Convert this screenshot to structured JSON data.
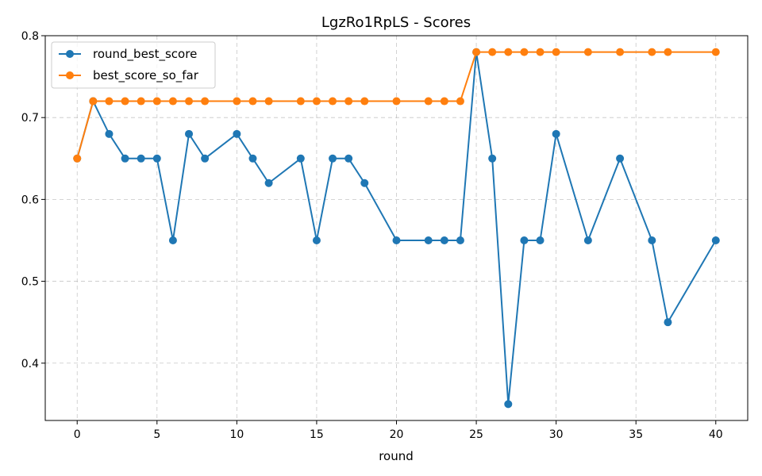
{
  "chart_data": {
    "type": "line",
    "title": "LgzRo1RpLS - Scores",
    "xlabel": "round",
    "ylabel": "",
    "xlim": [
      -2,
      42
    ],
    "ylim": [
      0.33,
      0.8
    ],
    "xticks": [
      0,
      5,
      10,
      15,
      20,
      25,
      30,
      35,
      40
    ],
    "yticks": [
      0.4,
      0.5,
      0.6,
      0.7,
      0.8
    ],
    "grid": true,
    "legend_position": "top-left",
    "x": [
      0,
      1,
      2,
      3,
      4,
      5,
      6,
      7,
      8,
      10,
      11,
      12,
      14,
      15,
      16,
      17,
      18,
      20,
      22,
      23,
      24,
      25,
      26,
      27,
      28,
      29,
      30,
      32,
      34,
      36,
      37,
      40
    ],
    "series": [
      {
        "name": "round_best_score",
        "color": "#1f77b4",
        "values": [
          0.65,
          0.72,
          0.68,
          0.65,
          0.65,
          0.65,
          0.55,
          0.68,
          0.65,
          0.68,
          0.65,
          0.62,
          0.65,
          0.55,
          0.65,
          0.65,
          0.62,
          0.55,
          0.55,
          0.55,
          0.55,
          0.78,
          0.65,
          0.35,
          0.55,
          0.55,
          0.68,
          0.55,
          0.65,
          0.55,
          0.45,
          0.55
        ]
      },
      {
        "name": "best_score_so_far",
        "color": "#ff7f0e",
        "values": [
          0.65,
          0.72,
          0.72,
          0.72,
          0.72,
          0.72,
          0.72,
          0.72,
          0.72,
          0.72,
          0.72,
          0.72,
          0.72,
          0.72,
          0.72,
          0.72,
          0.72,
          0.72,
          0.72,
          0.72,
          0.72,
          0.78,
          0.78,
          0.78,
          0.78,
          0.78,
          0.78,
          0.78,
          0.78,
          0.78,
          0.78,
          0.78
        ]
      }
    ]
  }
}
